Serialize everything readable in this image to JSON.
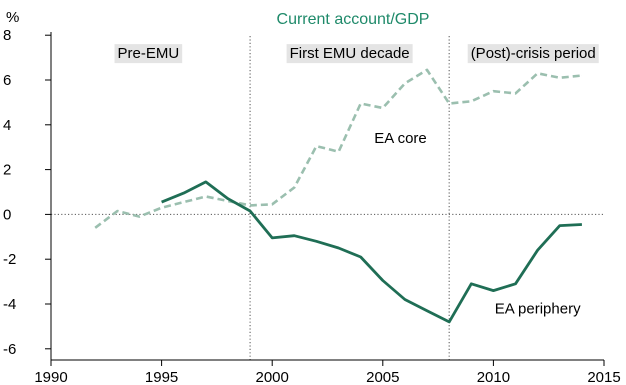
{
  "chart_data": {
    "type": "line",
    "title": "Current account/GDP",
    "ylabel": "%",
    "xlabel": "",
    "xlim": [
      1990,
      2015
    ],
    "ylim": [
      -6.5,
      8.5
    ],
    "xticks": [
      1990,
      1995,
      2000,
      2005,
      2010,
      2015
    ],
    "yticks": [
      -6,
      -4,
      -2,
      0,
      2,
      4,
      6,
      8
    ],
    "grid": false,
    "period_dividers": [
      1999,
      2008
    ],
    "period_labels": [
      {
        "label": "Pre-EMU",
        "x": 1994.4,
        "y": 7.2
      },
      {
        "label": "First EMU decade",
        "x": 2003.5,
        "y": 7.2
      },
      {
        "label": "(Post)-crisis period",
        "x": 2011.8,
        "y": 7.2
      }
    ],
    "series": [
      {
        "name": "EA core",
        "style": "dashed",
        "color": "#9bbfaf",
        "x": [
          1992,
          1993,
          1994,
          1995,
          1996,
          1997,
          1998,
          1999,
          2000,
          2001,
          2002,
          2003,
          2004,
          2005,
          2006,
          2007,
          2008,
          2009,
          2010,
          2011,
          2012,
          2013,
          2014
        ],
        "values": [
          -0.6,
          0.15,
          -0.1,
          0.3,
          0.55,
          0.8,
          0.6,
          0.4,
          0.45,
          1.2,
          3.05,
          2.8,
          4.95,
          4.75,
          5.85,
          6.45,
          4.95,
          5.05,
          5.5,
          5.4,
          6.3,
          6.1,
          6.2
        ],
        "label_pos": {
          "x": 2005.8,
          "y": 3.4
        }
      },
      {
        "name": "EA periphery",
        "style": "solid",
        "color": "#1f6e55",
        "x": [
          1995,
          1996,
          1997,
          1998,
          1999,
          2000,
          2001,
          2002,
          2003,
          2004,
          2005,
          2006,
          2007,
          2008,
          2009,
          2010,
          2011,
          2012,
          2013,
          2014
        ],
        "values": [
          0.55,
          0.95,
          1.45,
          0.7,
          0.15,
          -1.05,
          -0.95,
          -1.2,
          -1.5,
          -1.9,
          -2.95,
          -3.8,
          -4.3,
          -4.8,
          -3.1,
          -3.4,
          -3.1,
          -1.6,
          -0.5,
          -0.45
        ],
        "label_pos": {
          "x": 2012.0,
          "y": -4.2
        }
      }
    ]
  }
}
